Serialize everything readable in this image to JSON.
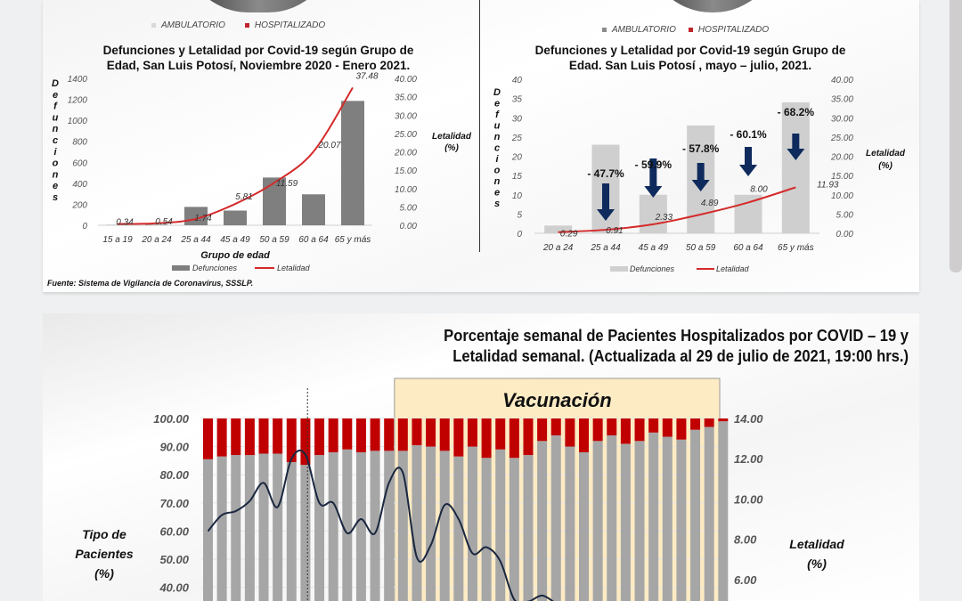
{
  "top_legend": {
    "left": {
      "ambulatorio": "AMBULATORIO",
      "hospitalizado": "HOSPITALIZADO"
    },
    "right": {
      "ambulatorio": "AMBULATORIO",
      "hospitalizado": "HOSPITALIZADO"
    },
    "colors": {
      "ambulatorio": "#c8c8c8",
      "hospitalizado": "#c0242c"
    }
  },
  "source": "Fuente: Sistema de Vigilancia de Coronavirus, SSSLP.",
  "colors": {
    "dark_bar": "#7f7f7f",
    "light_bar": "#cfcfcf",
    "red_line": "#d42a2a",
    "hosp_red": "#c00000",
    "amb_gray": "#a6a6a6",
    "navy_line": "#1a2740",
    "arrow": "#0f2a5c",
    "vaccination_bg": "#fdebc4"
  },
  "chart_data": [
    {
      "type": "bar+line",
      "title": "Defunciones y Letalidad por Covid-19 según Grupo de Edad, San Luis Potosí, Noviembre 2020 - Enero 2021.",
      "title_lines": [
        "Defunciones y Letalidad por Covid-19 según Grupo de",
        "Edad, San Luis Potosí, Noviembre 2020 - Enero 2021."
      ],
      "xlabel": "Grupo de edad",
      "ylabel": "Defunciones",
      "y2label": "Letalidad (%)",
      "categories": [
        "15 a 19",
        "20 a 24",
        "25 a 44",
        "45 a 49",
        "50 a 59",
        "60 a 64",
        "65 y más"
      ],
      "series": [
        {
          "name": "Defunciones",
          "type": "bar",
          "axis": "left",
          "values": [
            2,
            5,
            175,
            140,
            455,
            295,
            1185
          ]
        },
        {
          "name": "Letalidad",
          "type": "line",
          "axis": "right",
          "values": [
            0.34,
            0.54,
            1.74,
            5.81,
            11.59,
            20.07,
            37.48
          ],
          "labels": [
            "0.34",
            "0.54",
            "1.74",
            "5.81",
            "11.59",
            "20.07",
            "37.48"
          ]
        }
      ],
      "ylim": [
        0,
        1400
      ],
      "yticks": [
        "1400",
        "1200",
        "1000",
        "800",
        "600",
        "400",
        "200",
        "0"
      ],
      "y2lim": [
        0,
        40
      ],
      "y2ticks": [
        "40.00",
        "35.00",
        "30.00",
        "25.00",
        "20.00",
        "15.00",
        "10.00",
        "5.00",
        "0.00"
      ],
      "legend": [
        "Defunciones",
        "Letalidad"
      ],
      "legend_position": "bottom"
    },
    {
      "type": "bar+line",
      "title": "Defunciones y Letalidad por Covid-19 según Grupo de Edad. San Luis Potosí , mayo – julio, 2021.",
      "title_lines": [
        "Defunciones y Letalidad por Covid-19 según Grupo de",
        "Edad. San Luis Potosí , mayo – julio, 2021."
      ],
      "xlabel": "",
      "ylabel": "Defunciones",
      "y2label": "Letalidad (%)",
      "categories": [
        "20 a 24",
        "25 a 44",
        "45 a 49",
        "50 a 59",
        "60 a 64",
        "65 y más"
      ],
      "series": [
        {
          "name": "Defunciones",
          "type": "bar",
          "axis": "left",
          "values": [
            2,
            23,
            10,
            28,
            10,
            34
          ]
        },
        {
          "name": "Letalidad",
          "type": "line",
          "axis": "right",
          "values": [
            0.29,
            0.91,
            2.33,
            4.89,
            8.0,
            11.93
          ],
          "labels": [
            "0.29",
            "0.91",
            "2.33",
            "4.89",
            "8.00",
            "11.93"
          ]
        }
      ],
      "annotations": [
        {
          "category": "25 a 44",
          "text": "- 47.7%"
        },
        {
          "category": "45 a 49",
          "text": "- 59.9%"
        },
        {
          "category": "50 a 59",
          "text": "- 57.8%"
        },
        {
          "category": "60 a 64",
          "text": "- 60.1%"
        },
        {
          "category": "65 y más",
          "text": "- 68.2%"
        }
      ],
      "ylim": [
        0,
        40
      ],
      "yticks": [
        "40",
        "35",
        "30",
        "25",
        "20",
        "15",
        "10",
        "5",
        "0"
      ],
      "y2lim": [
        0,
        40
      ],
      "y2ticks": [
        "40.00",
        "35.00",
        "30.00",
        "25.00",
        "20.00",
        "15.00",
        "10.00",
        "5.00",
        "0.00"
      ],
      "legend": [
        "Defunciones",
        "Letalidad"
      ],
      "legend_position": "bottom"
    },
    {
      "type": "stacked-bar+line",
      "title": "Porcentaje semanal de Pacientes Hospitalizados por COVID – 19 y Letalidad semanal. (Actualizada al 29 de julio de 2021, 19:00 hrs.)",
      "title_lines": [
        "Porcentaje semanal de Pacientes Hospitalizados por COVID – 19 y",
        "Letalidad semanal. (Actualizada al 29 de julio de 2021, 19:00 hrs.)"
      ],
      "ylabel": "Tipo de Pacientes (%)",
      "ylabel_lines": [
        "Tipo de",
        "Pacientes",
        "(%)"
      ],
      "y2label": "Letalidad (%)",
      "y2label_lines": [
        "Letalidad",
        "(%)"
      ],
      "annotation_region": {
        "label": "Vacunación",
        "start_index": 14,
        "end_index": 37
      },
      "dotted_marker_index": 7.5,
      "series": [
        {
          "name": "Ambulatorio",
          "type": "bar",
          "axis": "left",
          "values": [
            85.5,
            86.5,
            87,
            87,
            87.5,
            87.5,
            84.5,
            83.5,
            87,
            88,
            89,
            88,
            88.5,
            88.5,
            88.5,
            90.5,
            90,
            88.5,
            86.5,
            90,
            86,
            89,
            86,
            87,
            92,
            94,
            90,
            88,
            92,
            94,
            91,
            92,
            95,
            93.5,
            92.5,
            96,
            97,
            99
          ]
        },
        {
          "name": "Hospitalizado",
          "type": "bar",
          "axis": "left",
          "values": [
            14.5,
            13.5,
            13,
            13,
            12.5,
            12.5,
            15.5,
            16.5,
            13,
            12,
            11,
            12,
            11.5,
            11.5,
            11.5,
            9.5,
            10,
            11.5,
            13.5,
            10,
            14,
            11,
            14,
            13,
            8,
            6,
            10,
            12,
            8,
            6,
            9,
            8,
            5,
            6.5,
            7.5,
            4,
            3,
            1
          ]
        },
        {
          "name": "Letalidad",
          "type": "line",
          "axis": "right",
          "values": [
            8.4,
            9.2,
            9.4,
            9.9,
            10.8,
            9.6,
            12.0,
            12.2,
            9.8,
            9.8,
            8.3,
            9.0,
            8.3,
            10.8,
            11.3,
            7.1,
            7.7,
            9.7,
            9.0,
            7.3,
            7.6,
            6.9,
            5.0,
            4.9,
            5.2,
            4.8
          ]
        }
      ],
      "ylim": [
        40,
        100
      ],
      "yticks": [
        "100.00",
        "90.00",
        "80.00",
        "70.00",
        "60.00",
        "50.00",
        "40.00"
      ],
      "y2lim": [
        6,
        14
      ],
      "y2ticks": [
        "14.00",
        "12.00",
        "10.00",
        "8.00",
        "6.00"
      ]
    }
  ]
}
